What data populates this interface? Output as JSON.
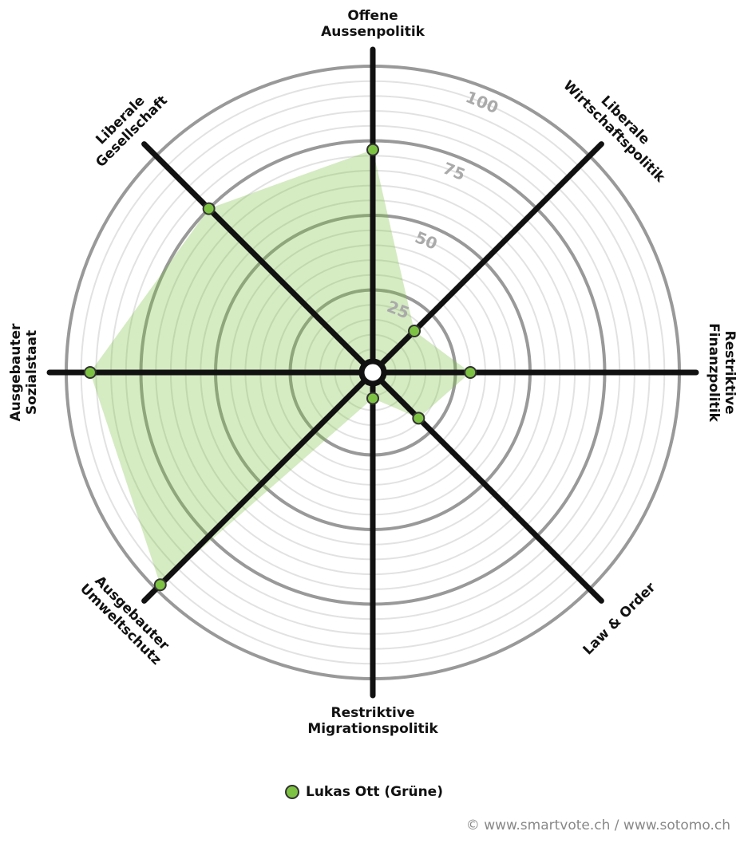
{
  "chart_data": {
    "type": "radar",
    "categories": [
      "Offene\nAussenpolitik",
      "Liberale\nWirtschaftspolitik",
      "Restriktive\nFinanzpolitik",
      "Law & Order",
      "Restriktive\nMigrationspolitik",
      "Ausgebauter\nUmweltschutz",
      "Ausgebauter\nSozialstaat",
      "Liberale\nGesellschaft"
    ],
    "series": [
      {
        "name": "Lukas Ott (Grüne)",
        "color": "#7dc242",
        "values": [
          72,
          17,
          30,
          19,
          6,
          98,
          92,
          75
        ]
      }
    ],
    "rlim": [
      0,
      100
    ],
    "rticks": [
      25,
      50,
      75,
      100
    ],
    "footer": "© www.smartvote.ch / www.sotomo.ch"
  }
}
